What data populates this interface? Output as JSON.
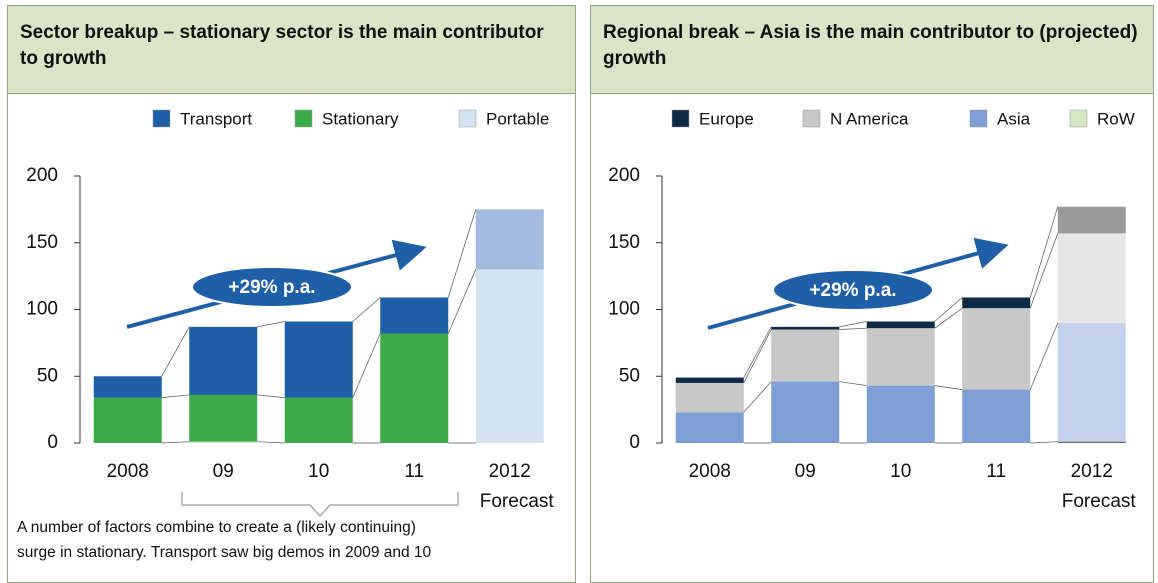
{
  "chart_data": [
    {
      "type": "bar",
      "stacked": true,
      "title": "Sector breakup – stationary sector is the main contributor to growth",
      "categories": [
        "2008",
        "09",
        "10",
        "11",
        "2012"
      ],
      "forecast": {
        "category": "2012",
        "label": "Forecast"
      },
      "series": [
        {
          "name": "Transport",
          "color": "#1f5fa8",
          "forecast_color": "#a4bade",
          "values": [
            16,
            51,
            57,
            27,
            45
          ]
        },
        {
          "name": "Stationary",
          "color": "#3daa4a",
          "forecast_color": "#d3e2f1",
          "values": [
            34,
            35,
            34,
            82,
            130
          ]
        },
        {
          "name": "Portable",
          "color": "#d3e2f1",
          "forecast_color": "#e4eef8",
          "values": [
            0,
            1,
            0,
            0,
            0
          ]
        }
      ],
      "ylim": [
        0,
        200
      ],
      "yticks": [
        0,
        50,
        100,
        150,
        200
      ],
      "annotation": "+29% p.a.",
      "note": [
        "A number of factors combine to create a (likely continuing)",
        "surge in stationary. Transport saw big demos in 2009 and 10"
      ]
    },
    {
      "type": "bar",
      "stacked": true,
      "title": "Regional break – Asia is the main contributor to (projected) growth",
      "categories": [
        "2008",
        "09",
        "10",
        "11",
        "2012"
      ],
      "forecast": {
        "category": "2012",
        "label": "Forecast"
      },
      "series": [
        {
          "name": "Europe",
          "color": "#0e2a47",
          "forecast_color": "#9a9a9a",
          "values": [
            4,
            2,
            5,
            8,
            20
          ]
        },
        {
          "name": "N America",
          "color": "#c8c8c8",
          "forecast_color": "#e6e6e6",
          "values": [
            22,
            39,
            43,
            61,
            67
          ]
        },
        {
          "name": "Asia",
          "color": "#7d9fd6",
          "forecast_color": "#c5d2ee",
          "values": [
            23,
            46,
            43,
            40,
            89
          ]
        },
        {
          "name": "RoW",
          "color": "#d5e8c4",
          "forecast_color": "#666666",
          "values": [
            0,
            0,
            0,
            0,
            1
          ]
        }
      ],
      "ylim": [
        0,
        200
      ],
      "yticks": [
        0,
        50,
        100,
        150,
        200
      ],
      "annotation": "+29% p.a."
    }
  ]
}
